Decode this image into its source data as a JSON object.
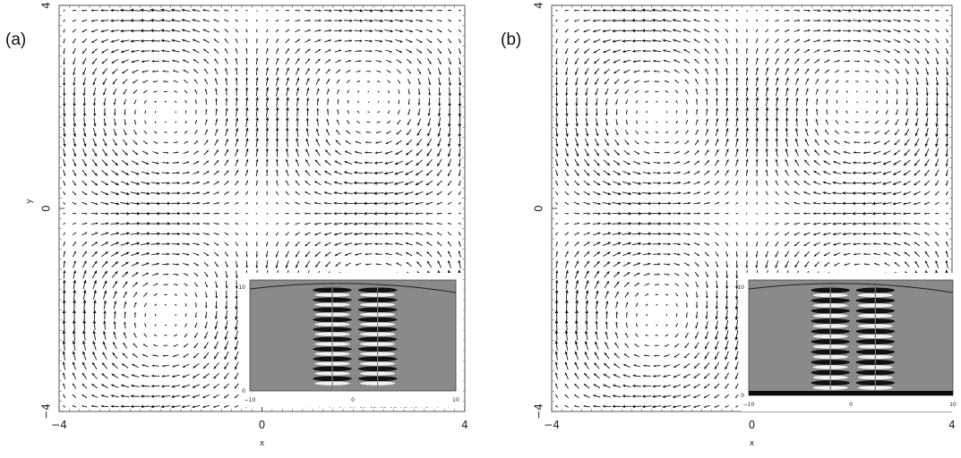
{
  "chart_data": [
    {
      "type": "quiver",
      "panel_label": "(a)",
      "xlabel": "x",
      "ylabel": "y",
      "xlim": [
        -4,
        4
      ],
      "ylim": [
        -4,
        4
      ],
      "x_ticks": [
        "−4",
        "0",
        "4"
      ],
      "y_ticks": [
        "−4",
        "0",
        "4"
      ],
      "vector_field": {
        "grid": 40,
        "features": "four counter-rotating vortex regions around a central saddle; inflow from left and right along y=0, outflow along x=0"
      },
      "inset": {
        "type": "heatmap",
        "x_ticks": [
          "−10",
          "0",
          "10"
        ],
        "y_ticks": [
          "0",
          "10"
        ],
        "colormap": "grayscale",
        "stripes": 10,
        "dark_bottom_band": false
      }
    },
    {
      "type": "quiver",
      "panel_label": "(b)",
      "xlabel": "x",
      "ylabel": "",
      "xlim": [
        -4,
        4
      ],
      "ylim": [
        -4,
        4
      ],
      "x_ticks": [
        "−4",
        "0",
        "4"
      ],
      "y_ticks": [
        "−4",
        "0",
        "4"
      ],
      "vector_field": {
        "grid": 40,
        "features": "four counter-rotating vortex regions around a central saddle; inflow from left and right along y=0, outflow along x=0"
      },
      "inset": {
        "type": "heatmap",
        "x_ticks": [
          "−10",
          "0",
          "10"
        ],
        "y_ticks": [
          "0",
          "10"
        ],
        "colormap": "grayscale",
        "stripes": 10,
        "dark_bottom_band": true
      }
    }
  ]
}
